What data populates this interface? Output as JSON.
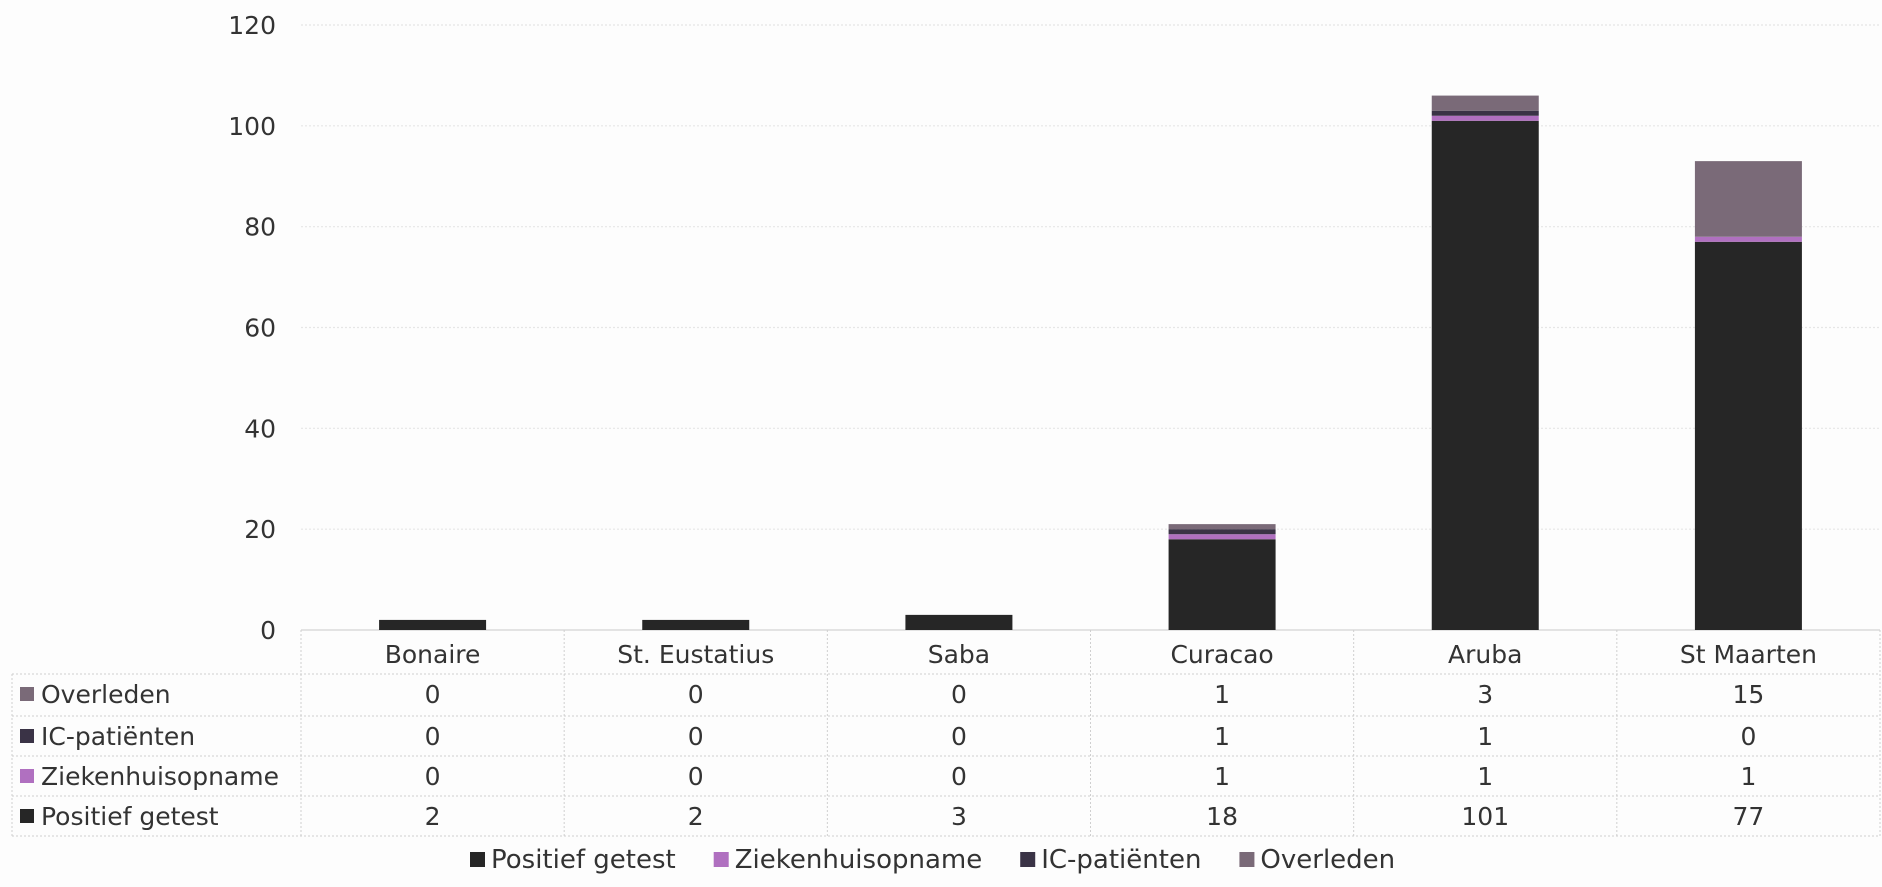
{
  "chart_data": {
    "type": "bar",
    "stacked": true,
    "categories": [
      "Bonaire",
      "St. Eustatius",
      "Saba",
      "Curacao",
      "Aruba",
      "St Maarten"
    ],
    "series": [
      {
        "name": "Positief getest",
        "color": "#262626",
        "values": [
          2,
          2,
          3,
          18,
          101,
          77
        ]
      },
      {
        "name": "Ziekenhuisopname",
        "color": "#b070c0",
        "values": [
          0,
          0,
          0,
          1,
          1,
          1
        ]
      },
      {
        "name": "IC-patiënten",
        "color": "#3a3346",
        "values": [
          0,
          0,
          0,
          1,
          1,
          0
        ]
      },
      {
        "name": "Overleden",
        "color": "#7a6a78",
        "values": [
          0,
          0,
          0,
          1,
          3,
          15
        ]
      }
    ],
    "table_row_order": [
      "Overleden",
      "IC-patiënten",
      "Ziekenhuisopname",
      "Positief getest"
    ],
    "y_ticks": [
      "0",
      "20",
      "40",
      "60",
      "80",
      "100",
      "120"
    ],
    "ylim": [
      0,
      120
    ],
    "grid": true,
    "legend_position": "bottom",
    "data_table": true
  }
}
